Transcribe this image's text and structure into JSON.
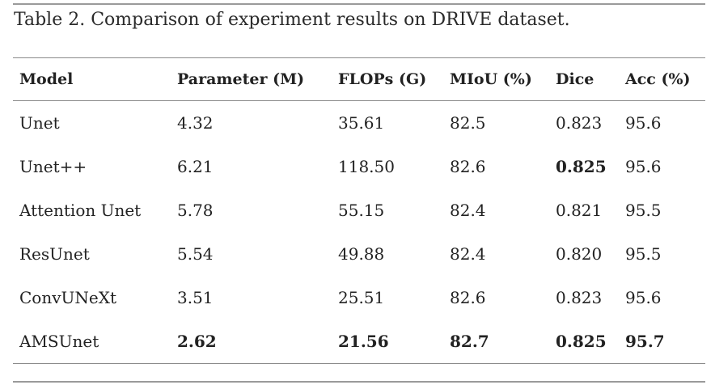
{
  "caption": "Table 2. Comparison of experiment results on DRIVE dataset.",
  "columns": [
    "Model",
    "Parameter (M)",
    "FLOPs (G)",
    "MIoU (%)",
    "Dice",
    "Acc (%)"
  ],
  "rows": [
    {
      "model": "Unet",
      "params": "4.32",
      "flops": "35.61",
      "miou": "82.5",
      "dice": "0.823",
      "acc": "95.6"
    },
    {
      "model": "Unet++",
      "params": "6.21",
      "flops": "118.50",
      "miou": "82.6",
      "dice": "0.825",
      "acc": "95.6"
    },
    {
      "model": "Attention Unet",
      "params": "5.78",
      "flops": "55.15",
      "miou": "82.4",
      "dice": "0.821",
      "acc": "95.5"
    },
    {
      "model": "ResUnet",
      "params": "5.54",
      "flops": "49.88",
      "miou": "82.4",
      "dice": "0.820",
      "acc": "95.5"
    },
    {
      "model": "ConvUNeXt",
      "params": "3.51",
      "flops": "25.51",
      "miou": "82.6",
      "dice": "0.823",
      "acc": "95.6"
    },
    {
      "model": "AMSUnet",
      "params": "2.62",
      "flops": "21.56",
      "miou": "82.7",
      "dice": "0.825",
      "acc": "95.7"
    }
  ],
  "bold_cells": [
    {
      "row": 1,
      "field": "dice"
    },
    {
      "row": 5,
      "field": "params"
    },
    {
      "row": 5,
      "field": "flops"
    },
    {
      "row": 5,
      "field": "miou"
    },
    {
      "row": 5,
      "field": "dice"
    },
    {
      "row": 5,
      "field": "acc"
    }
  ]
}
